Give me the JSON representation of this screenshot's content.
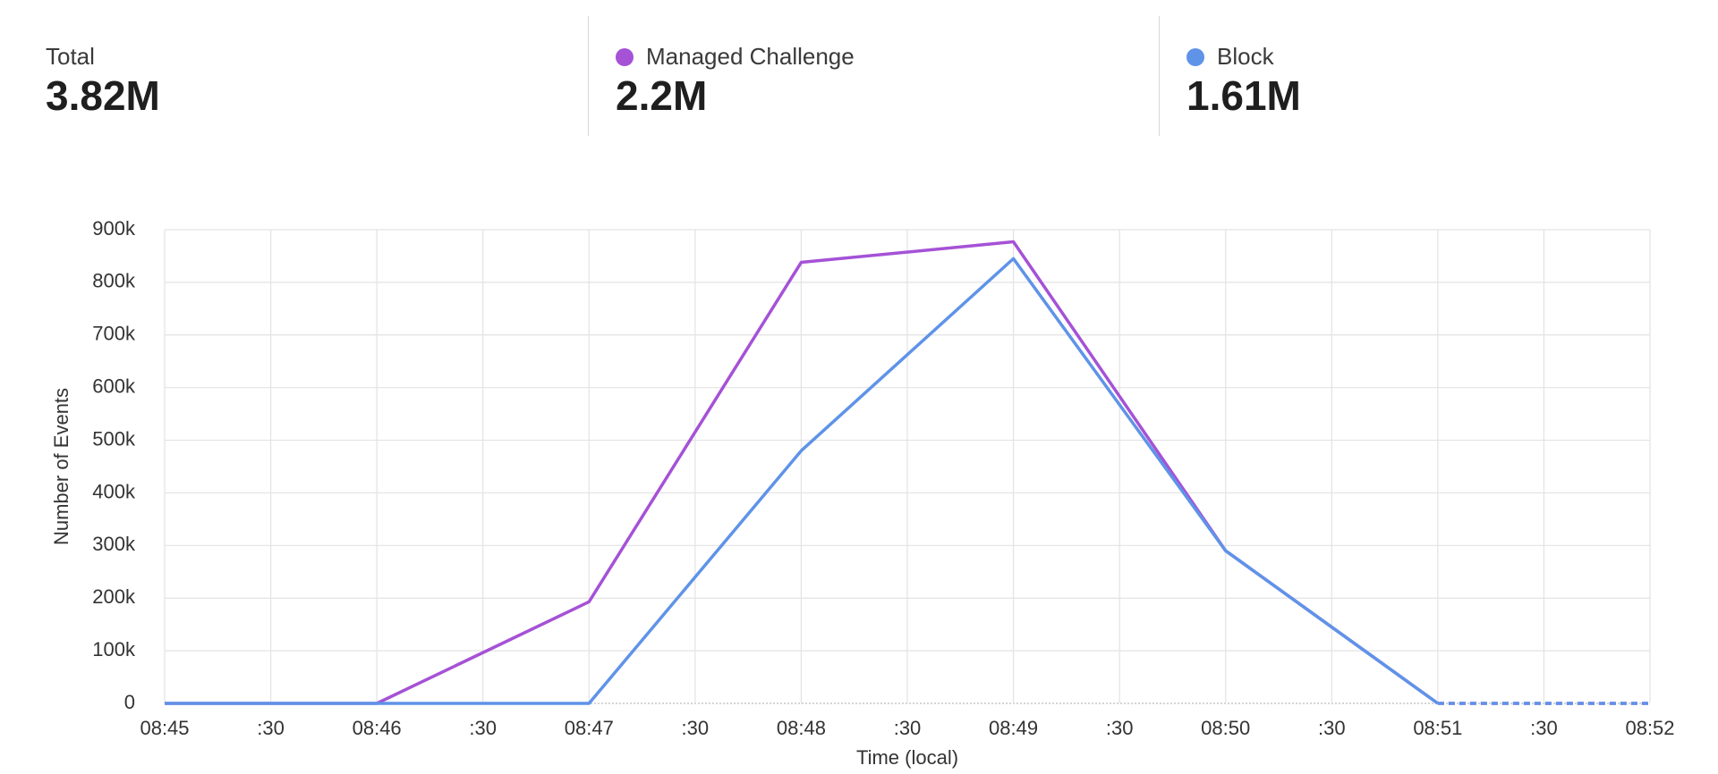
{
  "stats": [
    {
      "label": "Total",
      "value": "3.82M"
    },
    {
      "label": "Managed Challenge",
      "value": "2.2M"
    },
    {
      "label": "Block",
      "value": "1.61M"
    }
  ],
  "chart_data": {
    "type": "line",
    "x_label": "Time (local)",
    "y_label": "Number of Events",
    "x": [
      0,
      60,
      120,
      180,
      240,
      300,
      360,
      420
    ],
    "series": [
      {
        "name": "Managed Challenge",
        "color": "#a552d6",
        "values": [
          0,
          0,
          193000,
          838000,
          877000,
          290000,
          0,
          0
        ]
      },
      {
        "name": "Block",
        "color": "#5f93e8",
        "values": [
          0,
          0,
          0,
          480000,
          845000,
          290000,
          0,
          0
        ]
      }
    ],
    "dashed_last_segment": true,
    "xlim": [
      0,
      420
    ],
    "xticks": [
      {
        "value": 0,
        "label": "08:45"
      },
      {
        "value": 30,
        "label": ":30"
      },
      {
        "value": 60,
        "label": "08:46"
      },
      {
        "value": 90,
        "label": ":30"
      },
      {
        "value": 120,
        "label": "08:47"
      },
      {
        "value": 150,
        "label": ":30"
      },
      {
        "value": 180,
        "label": "08:48"
      },
      {
        "value": 210,
        "label": ":30"
      },
      {
        "value": 240,
        "label": "08:49"
      },
      {
        "value": 270,
        "label": ":30"
      },
      {
        "value": 300,
        "label": "08:50"
      },
      {
        "value": 330,
        "label": ":30"
      },
      {
        "value": 360,
        "label": "08:51"
      },
      {
        "value": 390,
        "label": ":30"
      },
      {
        "value": 420,
        "label": "08:52"
      }
    ],
    "ylim": [
      0,
      900000
    ],
    "yticks": [
      0,
      {
        "value": 100000,
        "label": "100k"
      },
      {
        "value": 200000,
        "label": "200k"
      },
      {
        "value": 300000,
        "label": "300k"
      },
      {
        "value": 400000,
        "label": "400k"
      },
      {
        "value": 500000,
        "label": "500k"
      },
      {
        "value": 600000,
        "label": "600k"
      },
      {
        "value": 700000,
        "label": "700k"
      },
      {
        "value": 800000,
        "label": "800k"
      },
      {
        "value": 900000,
        "label": "900k"
      }
    ],
    "grid": true
  }
}
